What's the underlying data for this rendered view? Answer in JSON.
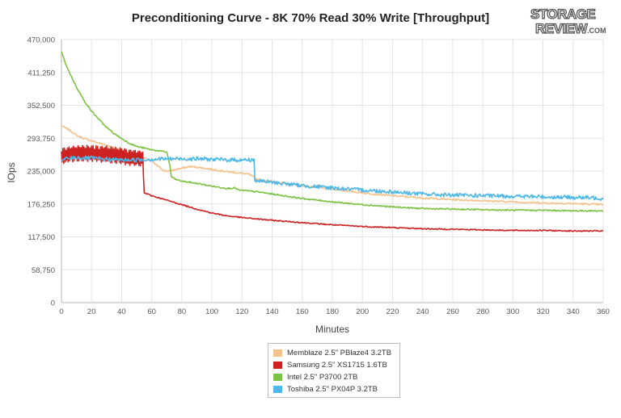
{
  "brand": {
    "line1": "STORAGE",
    "line2": "REVIEW",
    "suffix": ".COM"
  },
  "chart_data": {
    "type": "line",
    "title": "Preconditioning Curve - 8K 70% Read 30% Write [Throughput]",
    "xlabel": "Minutes",
    "ylabel": "IOps",
    "xlim": [
      0,
      360
    ],
    "ylim": [
      0,
      470000
    ],
    "x_ticks": [
      0,
      20,
      40,
      60,
      80,
      100,
      120,
      140,
      160,
      180,
      200,
      220,
      240,
      260,
      280,
      300,
      320,
      340,
      360
    ],
    "y_ticks": [
      0,
      58750,
      117500,
      176250,
      235000,
      293750,
      352500,
      411250,
      470000
    ],
    "y_tick_labels": [
      "0",
      "58,750",
      "117,500",
      "176,250",
      "235,000",
      "293,750",
      "352,500",
      "411,250",
      "470,000"
    ],
    "grid": true,
    "legend_position": "bottom",
    "series": [
      {
        "name": "Memblaze 2.5\" PBlaze4 3.2TB",
        "color": "#f5c28b",
        "points": [
          [
            0,
            316000
          ],
          [
            5,
            309000
          ],
          [
            10,
            299000
          ],
          [
            15,
            293000
          ],
          [
            20,
            289000
          ],
          [
            25,
            285000
          ],
          [
            30,
            281000
          ],
          [
            35,
            277000
          ],
          [
            40,
            273000
          ],
          [
            45,
            269000
          ],
          [
            50,
            264000
          ],
          [
            55,
            258000
          ],
          [
            60,
            253000
          ],
          [
            62,
            248000
          ],
          [
            65,
            242000
          ],
          [
            68,
            236000
          ],
          [
            70,
            235000
          ],
          [
            73,
            236000
          ],
          [
            76,
            238000
          ],
          [
            80,
            240000
          ],
          [
            85,
            243000
          ],
          [
            90,
            242000
          ],
          [
            95,
            240000
          ],
          [
            100,
            238000
          ],
          [
            110,
            234000
          ],
          [
            120,
            231000
          ],
          [
            125,
            229000
          ],
          [
            130,
            220000
          ],
          [
            140,
            216000
          ],
          [
            160,
            209000
          ],
          [
            180,
            203000
          ],
          [
            200,
            196000
          ],
          [
            220,
            191000
          ],
          [
            240,
            187000
          ],
          [
            260,
            184000
          ],
          [
            280,
            182000
          ],
          [
            300,
            180000
          ],
          [
            320,
            178000
          ],
          [
            340,
            177000
          ],
          [
            360,
            175000
          ]
        ],
        "noise": 1500
      },
      {
        "name": "Samsung 2.5\" XS1715 1.6TB",
        "color": "#cc2222",
        "points": [
          [
            0,
            262000
          ],
          [
            2,
            263000
          ],
          [
            5,
            265000
          ],
          [
            10,
            266000
          ],
          [
            20,
            267000
          ],
          [
            30,
            265000
          ],
          [
            40,
            262000
          ],
          [
            50,
            258000
          ],
          [
            54,
            257000
          ],
          [
            55,
            196000
          ],
          [
            60,
            191000
          ],
          [
            70,
            183000
          ],
          [
            80,
            175000
          ],
          [
            90,
            167000
          ],
          [
            100,
            160000
          ],
          [
            110,
            155000
          ],
          [
            120,
            152000
          ],
          [
            140,
            147000
          ],
          [
            160,
            143000
          ],
          [
            180,
            139000
          ],
          [
            200,
            136000
          ],
          [
            220,
            134000
          ],
          [
            240,
            132000
          ],
          [
            260,
            131000
          ],
          [
            280,
            130000
          ],
          [
            300,
            129000
          ],
          [
            320,
            129000
          ],
          [
            340,
            128000
          ],
          [
            360,
            128000
          ]
        ],
        "noise": 1000,
        "osc_until": 54,
        "osc_amp": 14000
      },
      {
        "name": "Intel 2.5\" P3700 2TB",
        "color": "#7dc242",
        "points": [
          [
            0,
            448000
          ],
          [
            3,
            425000
          ],
          [
            6,
            407000
          ],
          [
            10,
            385000
          ],
          [
            15,
            361000
          ],
          [
            20,
            342000
          ],
          [
            25,
            327000
          ],
          [
            30,
            313000
          ],
          [
            35,
            302000
          ],
          [
            40,
            293000
          ],
          [
            45,
            285000
          ],
          [
            50,
            279000
          ],
          [
            55,
            276000
          ],
          [
            60,
            273000
          ],
          [
            65,
            271000
          ],
          [
            70,
            269000
          ],
          [
            72,
            245000
          ],
          [
            73,
            225000
          ],
          [
            76,
            220000
          ],
          [
            80,
            217000
          ],
          [
            90,
            213000
          ],
          [
            100,
            208000
          ],
          [
            110,
            204000
          ],
          [
            115,
            205000
          ],
          [
            118,
            201000
          ],
          [
            130,
            198000
          ],
          [
            140,
            194000
          ],
          [
            160,
            186000
          ],
          [
            180,
            180000
          ],
          [
            200,
            175000
          ],
          [
            220,
            171000
          ],
          [
            240,
            168000
          ],
          [
            260,
            167000
          ],
          [
            280,
            166000
          ],
          [
            300,
            165000
          ],
          [
            320,
            165000
          ],
          [
            340,
            164000
          ],
          [
            360,
            164000
          ]
        ],
        "noise": 1200
      },
      {
        "name": "Toshiba 2.5\" PX04P 3.2TB",
        "color": "#4db8e8",
        "points": [
          [
            0,
            253000
          ],
          [
            2,
            256000
          ],
          [
            5,
            258000
          ],
          [
            10,
            259000
          ],
          [
            20,
            258000
          ],
          [
            30,
            256000
          ],
          [
            40,
            255000
          ],
          [
            50,
            255000
          ],
          [
            60,
            256000
          ],
          [
            70,
            257000
          ],
          [
            80,
            257000
          ],
          [
            90,
            257000
          ],
          [
            100,
            256000
          ],
          [
            110,
            255000
          ],
          [
            120,
            255000
          ],
          [
            128,
            255000
          ],
          [
            128.5,
            218000
          ],
          [
            140,
            215000
          ],
          [
            160,
            209000
          ],
          [
            180,
            205000
          ],
          [
            200,
            201000
          ],
          [
            220,
            198000
          ],
          [
            240,
            194000
          ],
          [
            260,
            192000
          ],
          [
            280,
            191000
          ],
          [
            300,
            190000
          ],
          [
            320,
            189000
          ],
          [
            340,
            188000
          ],
          [
            355,
            187000
          ],
          [
            360,
            186000
          ]
        ],
        "noise": 3500
      }
    ]
  }
}
